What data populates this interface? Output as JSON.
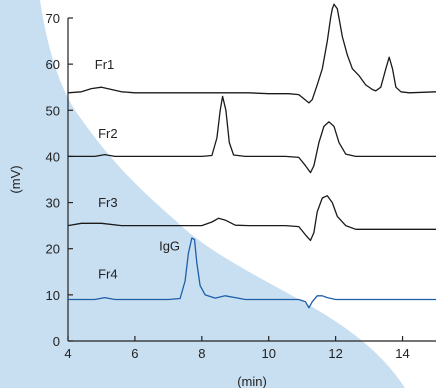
{
  "chart_data": {
    "type": "line",
    "xlabel": "(min)",
    "ylabel": "(mV)",
    "xlim": [
      4,
      15
    ],
    "ylim": [
      0,
      70
    ],
    "xticks": [
      4,
      6,
      8,
      10,
      12,
      14
    ],
    "yticks": [
      0,
      10,
      20,
      30,
      40,
      50,
      60,
      70
    ],
    "background_shape_color": "#c8dff2",
    "annotation": {
      "text": "IgG",
      "x": 7.5,
      "y": 20.5
    },
    "series": [
      {
        "name": "Fr1",
        "label_at": [
          4.8,
          59
        ],
        "color": "#1a1a1a",
        "points": [
          [
            4,
            53.8
          ],
          [
            4.4,
            54
          ],
          [
            4.7,
            54.7
          ],
          [
            5,
            55
          ],
          [
            5.3,
            54.5
          ],
          [
            5.6,
            54
          ],
          [
            6,
            53.8
          ],
          [
            8,
            53.8
          ],
          [
            8.8,
            53.8
          ],
          [
            9.4,
            53.8
          ],
          [
            10,
            53.6
          ],
          [
            10.6,
            53.6
          ],
          [
            10.9,
            53.4
          ],
          [
            11.05,
            52.5
          ],
          [
            11.2,
            51.6
          ],
          [
            11.3,
            52.3
          ],
          [
            11.45,
            55.5
          ],
          [
            11.6,
            59
          ],
          [
            11.75,
            65
          ],
          [
            11.85,
            70
          ],
          [
            11.9,
            72
          ],
          [
            11.95,
            73
          ],
          [
            12.05,
            72
          ],
          [
            12.1,
            70
          ],
          [
            12.2,
            66
          ],
          [
            12.35,
            62
          ],
          [
            12.5,
            59
          ],
          [
            12.7,
            57.5
          ],
          [
            12.9,
            55.5
          ],
          [
            13.1,
            54.5
          ],
          [
            13.2,
            54.2
          ],
          [
            13.35,
            55
          ],
          [
            13.5,
            59
          ],
          [
            13.6,
            61.5
          ],
          [
            13.7,
            59
          ],
          [
            13.8,
            55
          ],
          [
            13.95,
            54
          ],
          [
            14.2,
            53.8
          ],
          [
            15,
            54
          ]
        ]
      },
      {
        "name": "Fr2",
        "label_at": [
          4.9,
          44
        ],
        "color": "#1a1a1a",
        "points": [
          [
            4,
            40
          ],
          [
            4.8,
            40
          ],
          [
            5.1,
            40.4
          ],
          [
            5.4,
            40
          ],
          [
            8,
            40
          ],
          [
            8.3,
            40.2
          ],
          [
            8.45,
            44
          ],
          [
            8.55,
            50
          ],
          [
            8.62,
            53
          ],
          [
            8.72,
            50
          ],
          [
            8.82,
            43
          ],
          [
            8.95,
            40.3
          ],
          [
            9.3,
            40
          ],
          [
            10.5,
            40
          ],
          [
            10.9,
            39.8
          ],
          [
            11.1,
            38
          ],
          [
            11.25,
            36.5
          ],
          [
            11.35,
            38
          ],
          [
            11.5,
            43
          ],
          [
            11.65,
            46.5
          ],
          [
            11.8,
            47.5
          ],
          [
            11.95,
            46.5
          ],
          [
            12.1,
            43
          ],
          [
            12.3,
            40.5
          ],
          [
            12.6,
            40
          ],
          [
            15,
            40
          ]
        ]
      },
      {
        "name": "Fr3",
        "label_at": [
          4.9,
          29
        ],
        "color": "#1a1a1a",
        "points": [
          [
            4,
            25
          ],
          [
            4.4,
            25.5
          ],
          [
            5,
            25.5
          ],
          [
            5.6,
            25
          ],
          [
            8,
            25
          ],
          [
            8.3,
            25.8
          ],
          [
            8.5,
            26.6
          ],
          [
            8.7,
            26.2
          ],
          [
            9,
            25.1
          ],
          [
            9.4,
            25
          ],
          [
            10.5,
            25
          ],
          [
            10.9,
            24.8
          ],
          [
            11.1,
            23
          ],
          [
            11.25,
            21.8
          ],
          [
            11.35,
            23.5
          ],
          [
            11.45,
            28
          ],
          [
            11.6,
            31
          ],
          [
            11.75,
            31.5
          ],
          [
            11.9,
            30
          ],
          [
            12.05,
            27
          ],
          [
            12.3,
            25
          ],
          [
            12.6,
            24.2
          ],
          [
            15,
            24.2
          ]
        ]
      },
      {
        "name": "Fr4",
        "label_at": [
          4.9,
          13.5
        ],
        "color": "#1e5fa8",
        "points": [
          [
            4,
            9
          ],
          [
            4.8,
            9
          ],
          [
            5.1,
            9.4
          ],
          [
            5.4,
            9
          ],
          [
            7,
            9
          ],
          [
            7.35,
            9.2
          ],
          [
            7.5,
            13
          ],
          [
            7.6,
            19
          ],
          [
            7.7,
            22.3
          ],
          [
            7.78,
            22
          ],
          [
            7.85,
            17
          ],
          [
            7.95,
            12
          ],
          [
            8.1,
            10
          ],
          [
            8.4,
            9.3
          ],
          [
            8.7,
            9.8
          ],
          [
            9,
            9.4
          ],
          [
            9.3,
            9
          ],
          [
            10.5,
            9
          ],
          [
            10.9,
            9
          ],
          [
            11.1,
            8.5
          ],
          [
            11.2,
            7.2
          ],
          [
            11.3,
            8.5
          ],
          [
            11.45,
            9.8
          ],
          [
            11.6,
            9.8
          ],
          [
            11.75,
            9.4
          ],
          [
            12,
            9
          ],
          [
            15,
            9
          ]
        ]
      }
    ]
  }
}
